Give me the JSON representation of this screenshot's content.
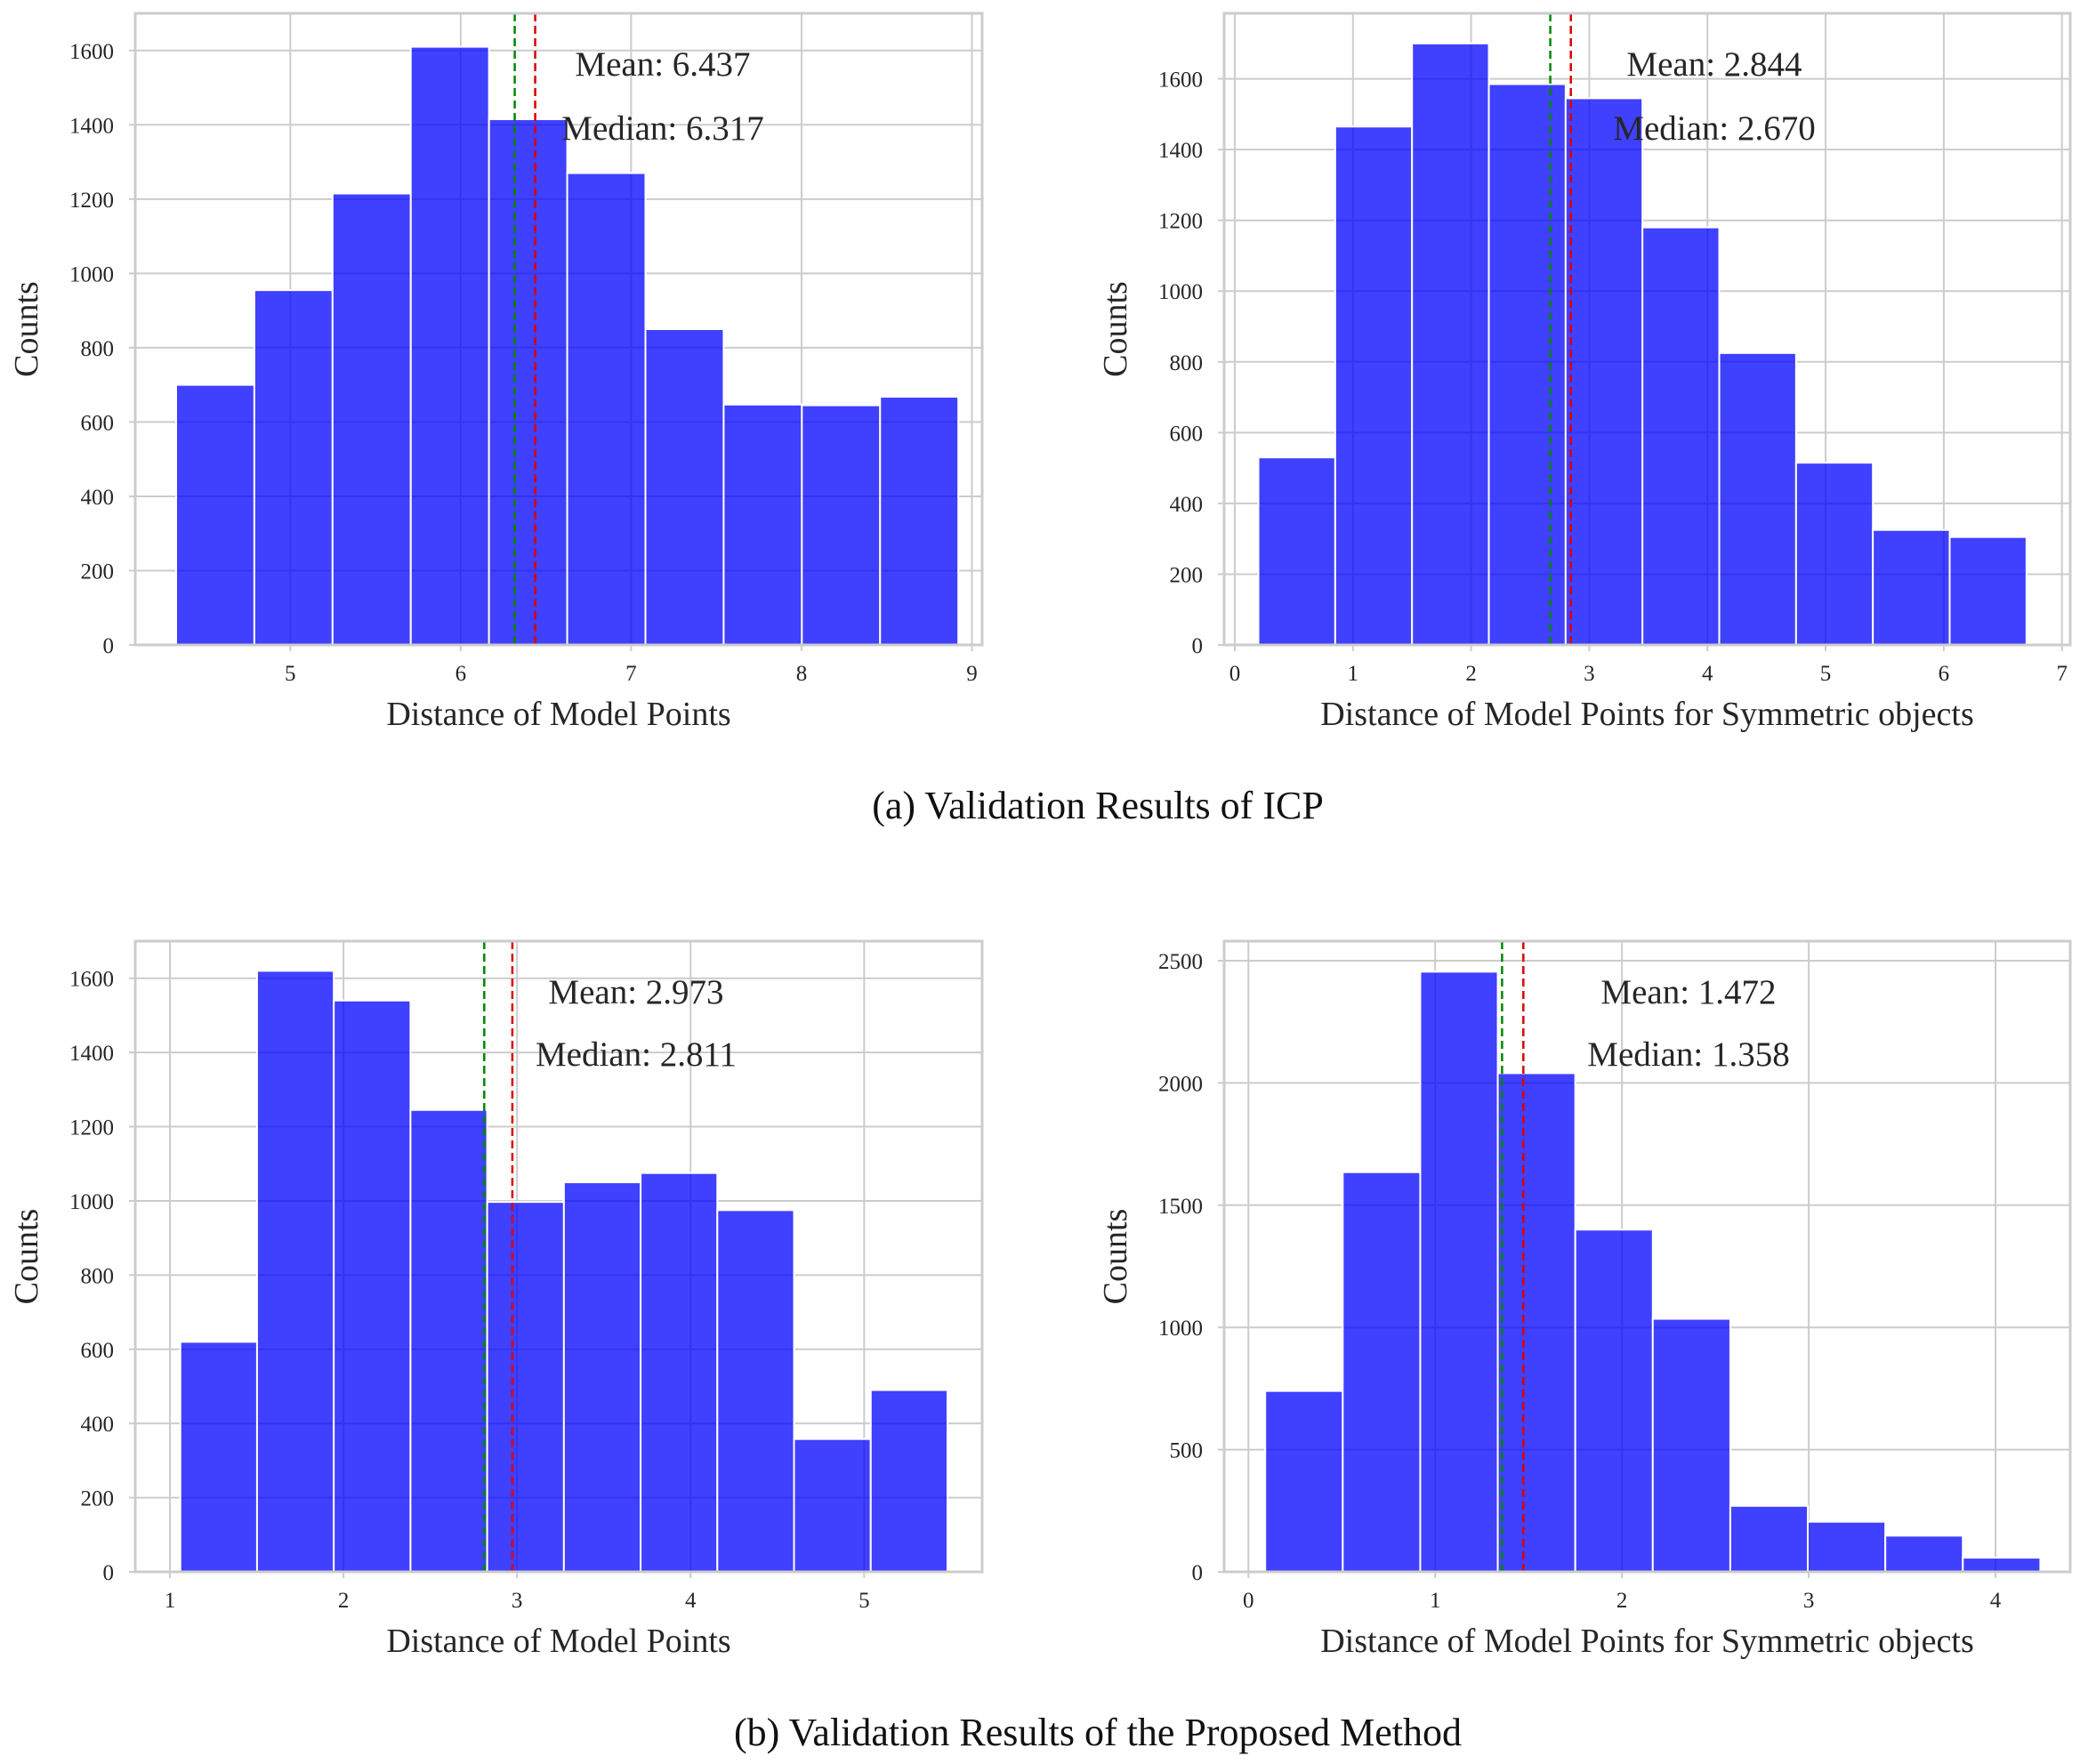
{
  "figure": {
    "captions": [
      "(a) Validation Results of ICP",
      "(b) Validation Results of the Proposed Method"
    ]
  },
  "colors": {
    "bar": "#0000ff",
    "bar_edge": "#ffffff",
    "mean_line": "#dd0000",
    "median_line": "#008800",
    "grid": "#cccccc",
    "frame": "#cccccc"
  },
  "chart_data": [
    {
      "type": "bar",
      "panel": "a-left",
      "title": "",
      "xlabel": "Distance of Model Points",
      "ylabel": "Counts",
      "xlim": [
        4.09,
        9.06
      ],
      "ylim": [
        0,
        1700
      ],
      "xticks": [
        5,
        6,
        7,
        8,
        9
      ],
      "yticks": [
        0,
        200,
        400,
        600,
        800,
        1000,
        1200,
        1400,
        1600
      ],
      "bin_edges": [
        4.33,
        4.789,
        5.248,
        5.707,
        6.166,
        6.625,
        7.084,
        7.543,
        8.002,
        8.461,
        8.92
      ],
      "values": [
        700,
        955,
        1215,
        1610,
        1415,
        1270,
        850,
        647,
        645,
        668
      ],
      "mean": 6.437,
      "median": 6.317,
      "annotations": [
        "Mean: 6.437",
        "Median: 6.317"
      ]
    },
    {
      "type": "bar",
      "panel": "a-right",
      "title": "",
      "xlabel": "Distance of Model Points for Symmetric objects",
      "ylabel": "Counts",
      "xlim": [
        -0.09,
        7.07
      ],
      "ylim": [
        0,
        1785
      ],
      "xticks": [
        0,
        1,
        2,
        3,
        4,
        5,
        6,
        7
      ],
      "yticks": [
        0,
        200,
        400,
        600,
        800,
        1000,
        1200,
        1400,
        1600
      ],
      "bin_edges": [
        0.2,
        0.85,
        1.5,
        2.15,
        2.8,
        3.45,
        4.1,
        4.75,
        5.4,
        6.05,
        6.7
      ],
      "values": [
        530,
        1465,
        1700,
        1585,
        1545,
        1180,
        825,
        515,
        325,
        305
      ],
      "mean": 2.844,
      "median": 2.67,
      "annotations": [
        "Mean: 2.844",
        "Median: 2.670"
      ]
    },
    {
      "type": "bar",
      "panel": "b-left",
      "title": "",
      "xlabel": "Distance of Model Points",
      "ylabel": "Counts",
      "xlim": [
        0.8,
        5.68
      ],
      "ylim": [
        0,
        1700
      ],
      "xticks": [
        1,
        2,
        3,
        4,
        5
      ],
      "yticks": [
        0,
        200,
        400,
        600,
        800,
        1000,
        1200,
        1400,
        1600
      ],
      "bin_edges": [
        1.06,
        1.502,
        1.944,
        2.386,
        2.828,
        3.27,
        3.712,
        4.154,
        4.596,
        5.038,
        5.48
      ],
      "values": [
        620,
        1620,
        1540,
        1245,
        997,
        1050,
        1075,
        975,
        358,
        490
      ],
      "mean": 2.973,
      "median": 2.811,
      "annotations": [
        "Mean: 2.973",
        "Median: 2.811"
      ]
    },
    {
      "type": "bar",
      "panel": "b-right",
      "title": "",
      "xlabel": "Distance of Model Points for Symmetric objects",
      "ylabel": "Counts",
      "xlim": [
        -0.13,
        4.4
      ],
      "ylim": [
        0,
        2580
      ],
      "xticks": [
        0,
        1,
        2,
        3,
        4
      ],
      "yticks": [
        0,
        500,
        1000,
        1500,
        2000,
        2500
      ],
      "bin_edges": [
        0.09,
        0.505,
        0.92,
        1.335,
        1.75,
        2.165,
        2.58,
        2.995,
        3.41,
        3.825,
        4.24
      ],
      "values": [
        740,
        1635,
        2455,
        2040,
        1400,
        1035,
        270,
        205,
        148,
        58
      ],
      "mean": 1.472,
      "median": 1.358,
      "annotations": [
        "Mean: 1.472",
        "Median: 1.358"
      ]
    }
  ]
}
